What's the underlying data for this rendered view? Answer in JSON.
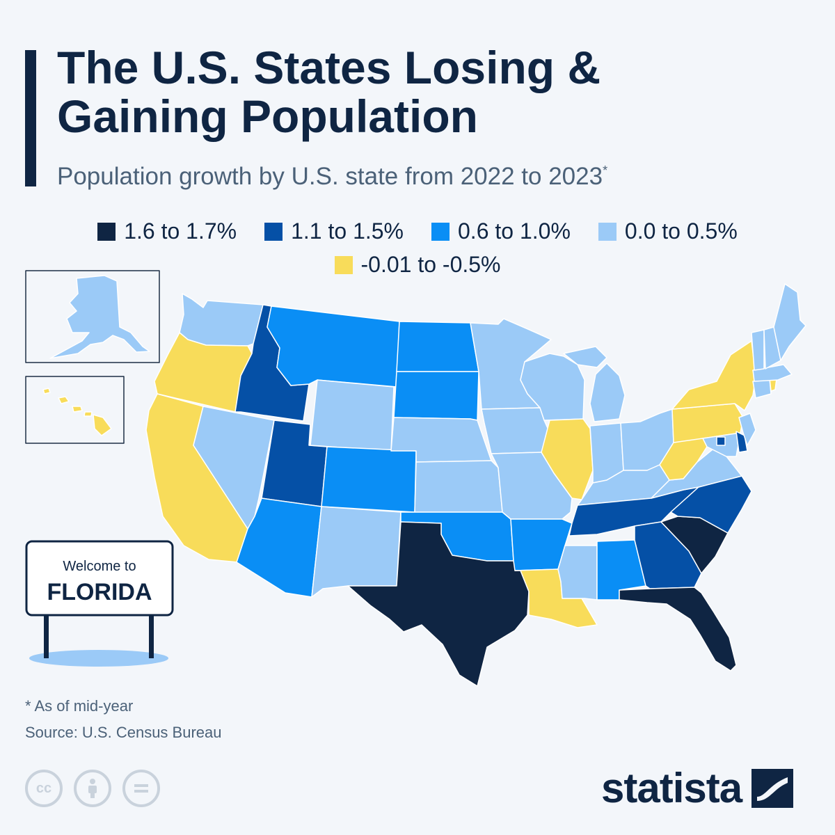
{
  "title": {
    "line1": "The U.S. States Losing &",
    "line2": "Gaining Population"
  },
  "subtitle": {
    "text": "Population growth by U.S. state from 2022 to 2023",
    "marker": "*"
  },
  "legend": [
    {
      "label": "1.6 to 1.7%",
      "color": "#0f2543"
    },
    {
      "label": "1.1 to 1.5%",
      "color": "#0550a6"
    },
    {
      "label": "0.6 to 1.0%",
      "color": "#0a8ef5"
    },
    {
      "label": "0.0 to 0.5%",
      "color": "#9bcaf7"
    },
    {
      "label": "-0.01 to -0.5%",
      "color": "#f8dc5a"
    }
  ],
  "sign": {
    "line1": "Welcome to",
    "line2": "FLORIDA"
  },
  "footnote": "* As of mid-year",
  "source": "Source: U.S. Census Bureau",
  "brand": "statista",
  "icons": [
    "cc-icon",
    "attribution-icon",
    "no-derivatives-icon",
    "statista-logo-icon"
  ],
  "chart_data": {
    "type": "choropleth",
    "title": "The U.S. States Losing & Gaining Population",
    "metric": "Population growth 2022 to 2023",
    "categories": [
      "1.6 to 1.7%",
      "1.1 to 1.5%",
      "0.6 to 1.0%",
      "0.0 to 0.5%",
      "-0.01 to -0.5%"
    ],
    "states": {
      "Texas": "1.6 to 1.7%",
      "Florida": "1.6 to 1.7%",
      "South Carolina": "1.6 to 1.7%",
      "Idaho": "1.1 to 1.5%",
      "Utah": "1.1 to 1.5%",
      "North Carolina": "1.1 to 1.5%",
      "Tennessee": "1.1 to 1.5%",
      "Georgia": "1.1 to 1.5%",
      "Delaware": "1.1 to 1.5%",
      "District of Columbia": "1.1 to 1.5%",
      "Montana": "0.6 to 1.0%",
      "North Dakota": "0.6 to 1.0%",
      "South Dakota": "0.6 to 1.0%",
      "Colorado": "0.6 to 1.0%",
      "Arizona": "0.6 to 1.0%",
      "Oklahoma": "0.6 to 1.0%",
      "Arkansas": "0.6 to 1.0%",
      "Alabama": "0.6 to 1.0%",
      "Washington": "0.0 to 0.5%",
      "Nevada": "0.0 to 0.5%",
      "Wyoming": "0.0 to 0.5%",
      "Nebraska": "0.0 to 0.5%",
      "Kansas": "0.0 to 0.5%",
      "New Mexico": "0.0 to 0.5%",
      "Minnesota": "0.0 to 0.5%",
      "Iowa": "0.0 to 0.5%",
      "Missouri": "0.0 to 0.5%",
      "Wisconsin": "0.0 to 0.5%",
      "Michigan": "0.0 to 0.5%",
      "Indiana": "0.0 to 0.5%",
      "Ohio": "0.0 to 0.5%",
      "Kentucky": "0.0 to 0.5%",
      "Virginia": "0.0 to 0.5%",
      "Maryland": "0.0 to 0.5%",
      "New Jersey": "0.0 to 0.5%",
      "Connecticut": "0.0 to 0.5%",
      "Massachusetts": "0.0 to 0.5%",
      "Vermont": "0.0 to 0.5%",
      "New Hampshire": "0.0 to 0.5%",
      "Maine": "0.0 to 0.5%",
      "Mississippi": "0.0 to 0.5%",
      "Alaska": "0.0 to 0.5%",
      "Oregon": "-0.01 to -0.5%",
      "California": "-0.01 to -0.5%",
      "Illinois": "-0.01 to -0.5%",
      "New York": "-0.01 to -0.5%",
      "Pennsylvania": "-0.01 to -0.5%",
      "West Virginia": "-0.01 to -0.5%",
      "Louisiana": "-0.01 to -0.5%",
      "Hawaii": "-0.01 to -0.5%",
      "Rhode Island": "-0.01 to -0.5%"
    }
  }
}
